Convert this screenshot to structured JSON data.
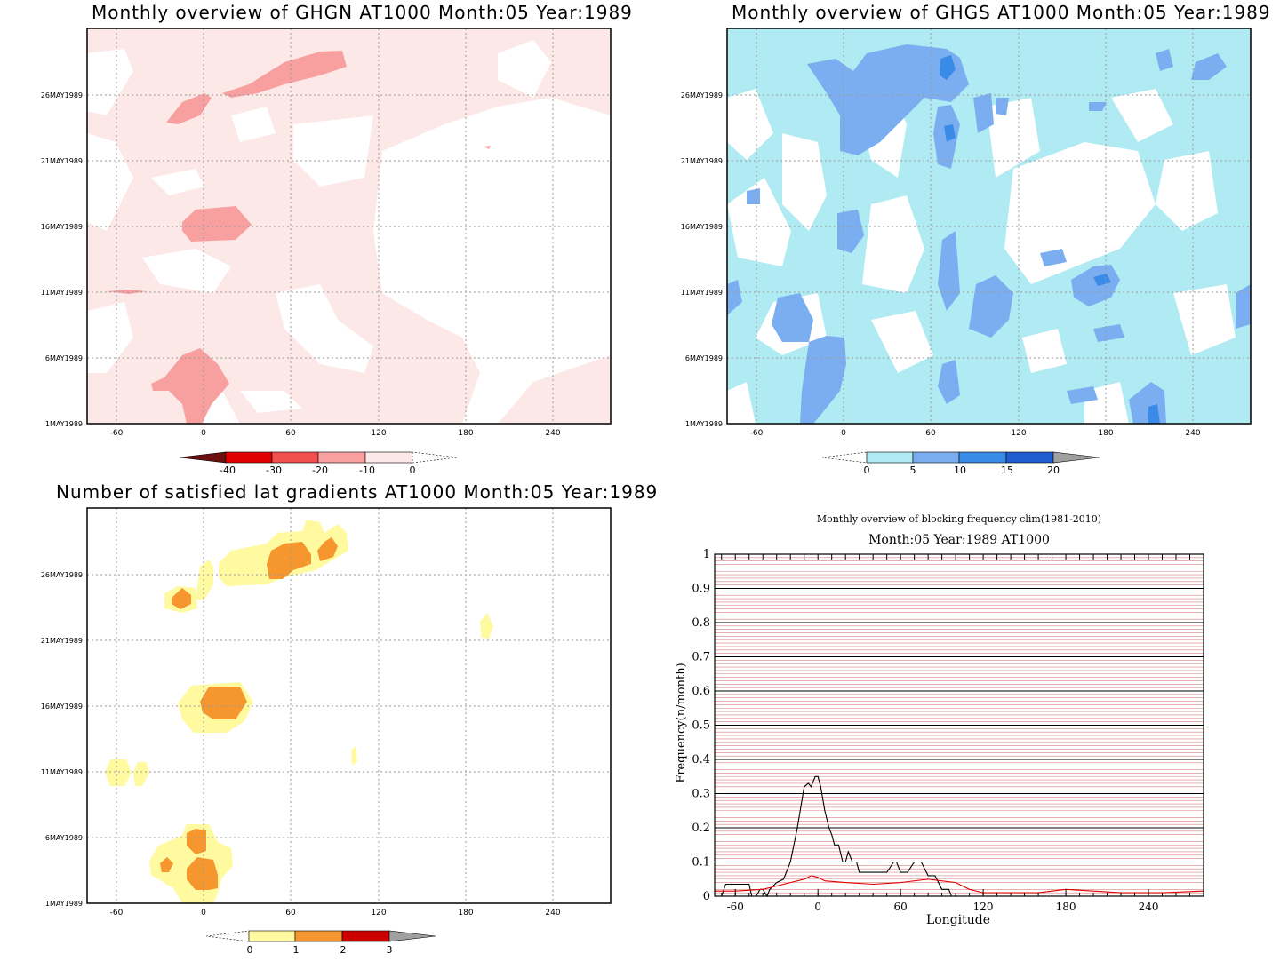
{
  "maps": [
    {
      "title": "Monthly overview of GHGN AT1000 Month:05 Year:1989",
      "colorbar": {
        "labels": [
          "-40",
          "-30",
          "-20",
          "-10",
          "0"
        ],
        "colors": [
          "#6b0f0f",
          "#e00000",
          "#f05050",
          "#f8a0a0",
          "#fde8e8"
        ]
      }
    },
    {
      "title": "Monthly overview of GHGS AT1000 Month:05 Year:1989",
      "colorbar": {
        "labels": [
          "0",
          "5",
          "10",
          "15",
          "20"
        ],
        "colors": [
          "#b0eaf2",
          "#7aaef0",
          "#3a8ae8",
          "#1f5cd0",
          "#a0a0a0"
        ]
      }
    },
    {
      "title": "Number of satisfied lat gradients AT1000 Month:05 Year:1989",
      "colorbar": {
        "labels": [
          "0",
          "1",
          "2",
          "3"
        ],
        "colors": [
          "#fffaa0",
          "#f5962e",
          "#cc0000",
          "#a0a0a0"
        ]
      }
    }
  ],
  "map_axes": {
    "x_ticks": [
      "-60",
      "0",
      "60",
      "120",
      "180",
      "240"
    ],
    "y_ticks": [
      "1MAY1989",
      "6MAY1989",
      "11MAY1989",
      "16MAY1989",
      "21MAY1989",
      "26MAY1989"
    ]
  },
  "chart_data": {
    "type": "line",
    "title": "Monthly overview of blocking frequency clim(1981-2010)",
    "subtitle": "Month:05 Year:1989  AT1000",
    "xlabel": "Longitude",
    "ylabel": "Frequency(n/month)",
    "xlim": [
      -75,
      280
    ],
    "ylim": [
      0,
      1
    ],
    "x_ticks": [
      "-60",
      "0",
      "60",
      "120",
      "180",
      "240"
    ],
    "y_ticks": [
      "0",
      "0.1",
      "0.2",
      "0.3",
      "0.4",
      "0.5",
      "0.6",
      "0.7",
      "0.8",
      "0.9",
      "1"
    ],
    "series": [
      {
        "color": "#000000",
        "x": [
          -75,
          -70,
          -67,
          -65,
          -50,
          -48,
          -45,
          -42,
          -40,
          -37,
          -35,
          -30,
          -25,
          -20,
          -15,
          -10,
          -7,
          -5,
          -2,
          0,
          2,
          5,
          8,
          10,
          12,
          15,
          18,
          20,
          22,
          25,
          28,
          30,
          35,
          40,
          50,
          55,
          57,
          60,
          65,
          70,
          75,
          80,
          85,
          90,
          95,
          97,
          100,
          280
        ],
        "y": [
          0,
          0,
          0.035,
          0.035,
          0.035,
          0,
          0,
          0.02,
          0.02,
          0,
          0.02,
          0.04,
          0.05,
          0.1,
          0.2,
          0.32,
          0.33,
          0.32,
          0.35,
          0.35,
          0.32,
          0.25,
          0.2,
          0.18,
          0.15,
          0.15,
          0.1,
          0.1,
          0.13,
          0.1,
          0.1,
          0.07,
          0.07,
          0.07,
          0.07,
          0.1,
          0.1,
          0.07,
          0.07,
          0.1,
          0.1,
          0.06,
          0.06,
          0.02,
          0.02,
          0,
          0,
          0
        ]
      },
      {
        "color": "#e00000",
        "x": [
          -75,
          -60,
          -40,
          -20,
          -10,
          -5,
          0,
          5,
          20,
          40,
          60,
          80,
          100,
          110,
          120,
          160,
          180,
          200,
          220,
          250,
          280
        ],
        "y": [
          0.015,
          0.015,
          0.02,
          0.04,
          0.05,
          0.06,
          0.055,
          0.045,
          0.04,
          0.035,
          0.04,
          0.05,
          0.04,
          0.02,
          0.01,
          0.01,
          0.02,
          0.015,
          0.01,
          0.01,
          0.015
        ]
      }
    ]
  }
}
